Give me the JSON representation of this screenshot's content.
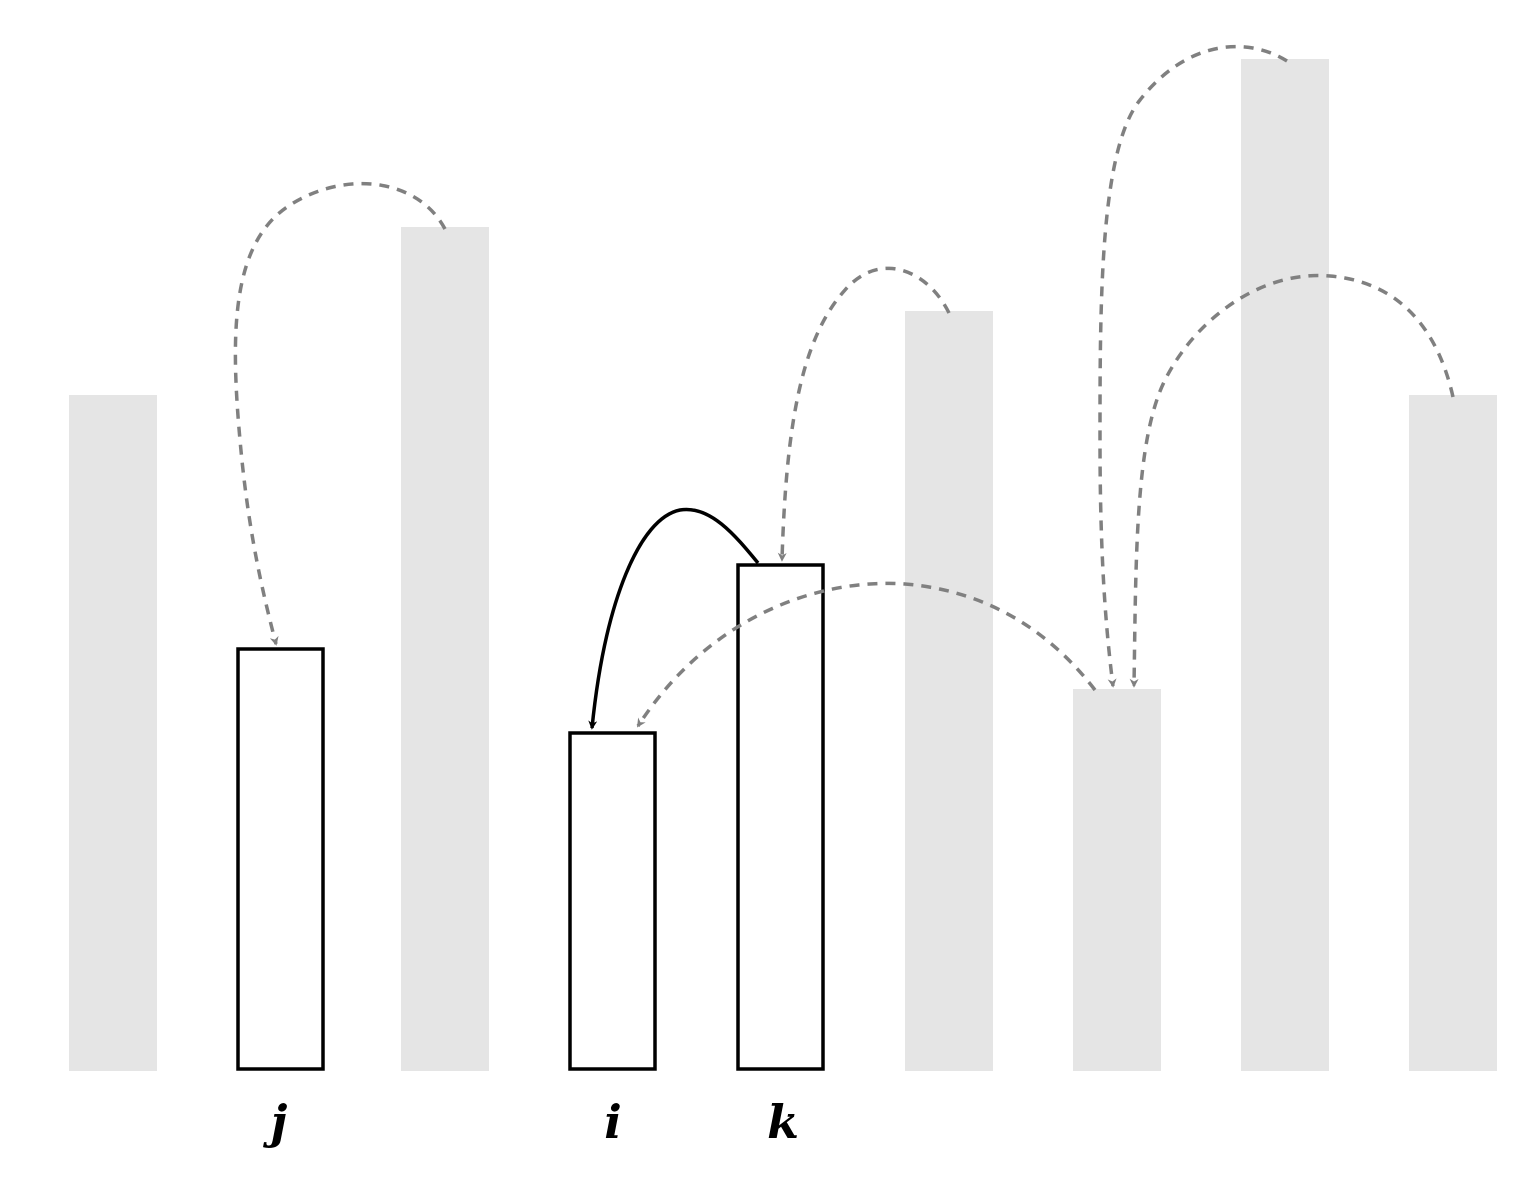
{
  "diagram": {
    "colors": {
      "background_bar": "#e5e5e5",
      "highlight_bar_fill": "#ffffff",
      "highlight_bar_stroke": "#000000",
      "dashed_arrow": "#808080",
      "solid_arrow": "#000000"
    },
    "bars": [
      {
        "name": "bar-1",
        "highlighted": false,
        "label": ""
      },
      {
        "name": "bar-2",
        "highlighted": true,
        "label": "j"
      },
      {
        "name": "bar-3",
        "highlighted": false,
        "label": ""
      },
      {
        "name": "bar-4",
        "highlighted": true,
        "label": "i"
      },
      {
        "name": "bar-5",
        "highlighted": true,
        "label": "k"
      },
      {
        "name": "bar-6",
        "highlighted": false,
        "label": ""
      },
      {
        "name": "bar-7",
        "highlighted": false,
        "label": ""
      },
      {
        "name": "bar-8",
        "highlighted": false,
        "label": ""
      },
      {
        "name": "bar-9",
        "highlighted": false,
        "label": ""
      }
    ],
    "arrows": [
      {
        "from": "bar-3",
        "to": "bar-2",
        "style": "dashed"
      },
      {
        "from": "bar-6",
        "to": "bar-5",
        "style": "dashed"
      },
      {
        "from": "bar-7",
        "to": "bar-4",
        "style": "dashed"
      },
      {
        "from": "bar-8",
        "to": "bar-7",
        "style": "dashed"
      },
      {
        "from": "bar-9",
        "to": "bar-7",
        "style": "dashed"
      },
      {
        "from": "bar-5",
        "to": "bar-4",
        "style": "solid"
      }
    ]
  }
}
